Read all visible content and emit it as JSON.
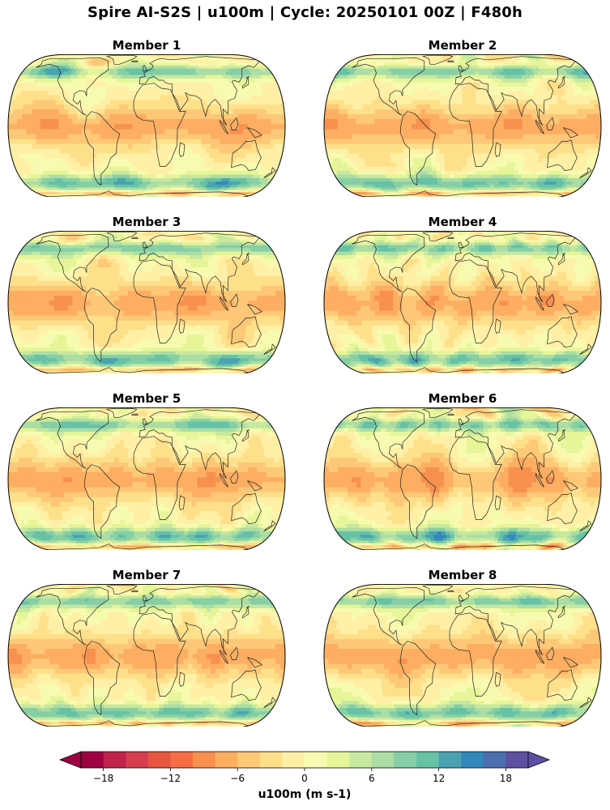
{
  "title": "Spire AI-S2S | u100m | Cycle: 20250101 00Z | F480h",
  "panels": [
    {
      "label": "Member 1",
      "seed": 11
    },
    {
      "label": "Member 2",
      "seed": 23
    },
    {
      "label": "Member 3",
      "seed": 37
    },
    {
      "label": "Member 4",
      "seed": 41
    },
    {
      "label": "Member 5",
      "seed": 53
    },
    {
      "label": "Member 6",
      "seed": 67
    },
    {
      "label": "Member 7",
      "seed": 79
    },
    {
      "label": "Member 8",
      "seed": 97
    }
  ],
  "colorbar": {
    "label": "u100m (m s-1)",
    "min": -20,
    "max": 20,
    "step": 2,
    "extend": "both",
    "ticks": [
      -18,
      -12,
      -6,
      0,
      6,
      12,
      18
    ],
    "tick_labels": [
      "−18",
      "−12",
      "−6",
      "0",
      "6",
      "12",
      "18"
    ],
    "colors": [
      "#9e0142",
      "#c0244a",
      "#d53e4f",
      "#e5573f",
      "#f46d43",
      "#f8904f",
      "#fdae61",
      "#fdc877",
      "#fee08b",
      "#fff0a6",
      "#f7fbaf",
      "#e6f598",
      "#c7e89f",
      "#abdda4",
      "#86cfa5",
      "#66c2a5",
      "#4ba3b1",
      "#3288bd",
      "#4b6fb0",
      "#5e4fa2"
    ],
    "under_color": "#9e0142",
    "over_color": "#5e4fa2"
  }
}
